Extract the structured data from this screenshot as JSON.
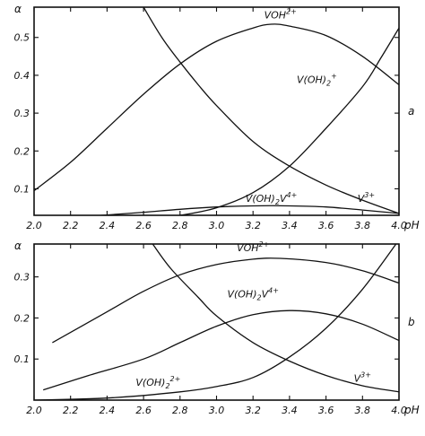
{
  "chart_data": [
    {
      "type": "line",
      "panel_label": "a",
      "xlabel": "pH",
      "ylabel": "α",
      "xlim": [
        2.0,
        4.0
      ],
      "ylim": [
        0.03,
        0.58
      ],
      "xticks": [
        "2.0",
        "2.2",
        "2.4",
        "2.6",
        "2.8",
        "3.0",
        "3.2",
        "3.4",
        "3.6",
        "3.8",
        "4.0"
      ],
      "yticks": [
        {
          "value": 0.1,
          "label": "0.1"
        },
        {
          "value": 0.2,
          "label": "0.2"
        },
        {
          "value": 0.3,
          "label": "0.3"
        },
        {
          "value": 0.4,
          "label": "0.4"
        },
        {
          "value": 0.5,
          "label": "0.5"
        }
      ],
      "series": [
        {
          "name": "VOH2+",
          "label_text": "VOH",
          "label_sup": "2+",
          "label_sub": "",
          "label_suffix": "",
          "label_at": [
            3.35,
            0.55
          ],
          "x": [
            2.0,
            2.2,
            2.4,
            2.6,
            2.8,
            3.0,
            3.2,
            3.3,
            3.4,
            3.6,
            3.8,
            4.0
          ],
          "y": [
            0.095,
            0.17,
            0.26,
            0.35,
            0.43,
            0.49,
            0.525,
            0.535,
            0.53,
            0.505,
            0.45,
            0.375
          ]
        },
        {
          "name": "V3+",
          "label_text": "V",
          "label_sup": "3+",
          "label_sub": "",
          "label_suffix": "",
          "label_at": [
            3.82,
            0.065
          ],
          "x": [
            2.6,
            2.7,
            2.8,
            2.9,
            3.0,
            3.2,
            3.4,
            3.6,
            3.8,
            4.0
          ],
          "y": [
            0.58,
            0.5,
            0.435,
            0.375,
            0.32,
            0.225,
            0.16,
            0.11,
            0.07,
            0.035
          ]
        },
        {
          "name": "V(OH)2+",
          "label_text": "V(OH)",
          "label_sup": "+",
          "label_sub": "2",
          "label_suffix": "",
          "label_at": [
            3.55,
            0.38
          ],
          "x": [
            2.6,
            2.8,
            3.0,
            3.2,
            3.4,
            3.6,
            3.8,
            3.9,
            4.0
          ],
          "y": [
            0.02,
            0.03,
            0.05,
            0.09,
            0.16,
            0.26,
            0.37,
            0.445,
            0.525
          ]
        },
        {
          "name": "V(OH)2V4+",
          "label_text": "V(OH)",
          "label_sup": "4+",
          "label_sub": "2",
          "label_suffix": "V",
          "label_at": [
            3.3,
            0.065
          ],
          "x": [
            2.0,
            2.2,
            2.4,
            2.6,
            2.8,
            3.0,
            3.2,
            3.4,
            3.6,
            3.8,
            4.0
          ],
          "y": [
            0.02,
            0.025,
            0.031,
            0.038,
            0.046,
            0.052,
            0.055,
            0.055,
            0.052,
            0.044,
            0.035
          ]
        }
      ]
    },
    {
      "type": "line",
      "panel_label": "b",
      "xlabel": "pH",
      "ylabel": "α",
      "xlim": [
        2.0,
        4.0
      ],
      "ylim": [
        0.0,
        0.38
      ],
      "xticks": [
        "2.0",
        "2.2",
        "2.4",
        "2.6",
        "2.8",
        "3.0",
        "3.2",
        "3.4",
        "3.6",
        "3.8",
        "4.0"
      ],
      "yticks": [
        {
          "value": 0.1,
          "label": "0.1"
        },
        {
          "value": 0.2,
          "label": "0.2"
        },
        {
          "value": 0.3,
          "label": "0.3"
        }
      ],
      "series": [
        {
          "name": "VOH2+",
          "label_text": "VOH",
          "label_sup": "2+",
          "label_sub": "",
          "label_suffix": "",
          "label_at": [
            3.2,
            0.362
          ],
          "x": [
            2.1,
            2.4,
            2.6,
            2.8,
            3.0,
            3.2,
            3.35,
            3.6,
            3.8,
            4.0
          ],
          "y": [
            0.14,
            0.215,
            0.265,
            0.305,
            0.33,
            0.343,
            0.345,
            0.335,
            0.315,
            0.285
          ]
        },
        {
          "name": "V(OH)2V4+",
          "label_text": "V(OH)",
          "label_sup": "4+",
          "label_sub": "2",
          "label_suffix": "V",
          "label_at": [
            3.2,
            0.25
          ],
          "x": [
            2.05,
            2.3,
            2.6,
            2.8,
            3.0,
            3.2,
            3.4,
            3.6,
            3.8,
            4.0
          ],
          "y": [
            0.025,
            0.06,
            0.1,
            0.14,
            0.18,
            0.208,
            0.218,
            0.21,
            0.185,
            0.145
          ]
        },
        {
          "name": "V3+",
          "label_text": "V",
          "label_sup": "3+",
          "label_sub": "",
          "label_suffix": "",
          "label_at": [
            3.8,
            0.045
          ],
          "x": [
            2.65,
            2.75,
            2.9,
            3.0,
            3.2,
            3.4,
            3.6,
            3.8,
            4.0
          ],
          "y": [
            0.38,
            0.32,
            0.25,
            0.205,
            0.14,
            0.095,
            0.06,
            0.035,
            0.02
          ]
        },
        {
          "name": "V(OH)22+",
          "label_text": "V(OH)",
          "label_sup": "2+",
          "label_sub": "2",
          "label_suffix": "",
          "label_at": [
            2.68,
            0.035
          ],
          "x": [
            2.0,
            2.4,
            2.8,
            3.0,
            3.2,
            3.4,
            3.6,
            3.8,
            4.0
          ],
          "y": [
            0.0,
            0.005,
            0.02,
            0.033,
            0.055,
            0.105,
            0.175,
            0.27,
            0.39
          ]
        }
      ]
    }
  ]
}
